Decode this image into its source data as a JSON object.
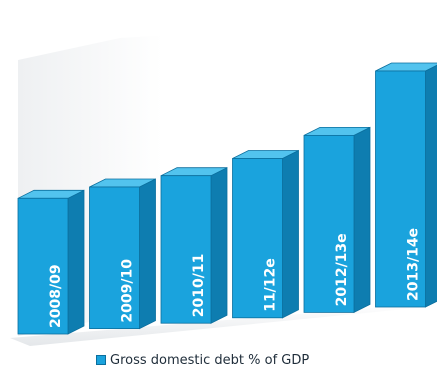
{
  "chart_data": {
    "type": "bar",
    "style": "3d-columns",
    "categories": [
      "2008/09",
      "2009/10",
      "2010/11",
      "11/12e",
      "2012/13e",
      "2013/14e"
    ],
    "series": [
      {
        "name": "Gross domestic debt % of GDP",
        "values": [
          23,
          24,
          25,
          27,
          30,
          40
        ]
      }
    ],
    "ylim": [
      0,
      42
    ],
    "grid": false,
    "axis_ticks_visible": false,
    "legend_position": "bottom",
    "colors": {
      "front": "#1aa3dd",
      "side": "#0e7db0",
      "top": "#52c3ee",
      "edge": "#0b6f9e",
      "label": "#ffffff",
      "floor": "#d9dde1"
    }
  }
}
